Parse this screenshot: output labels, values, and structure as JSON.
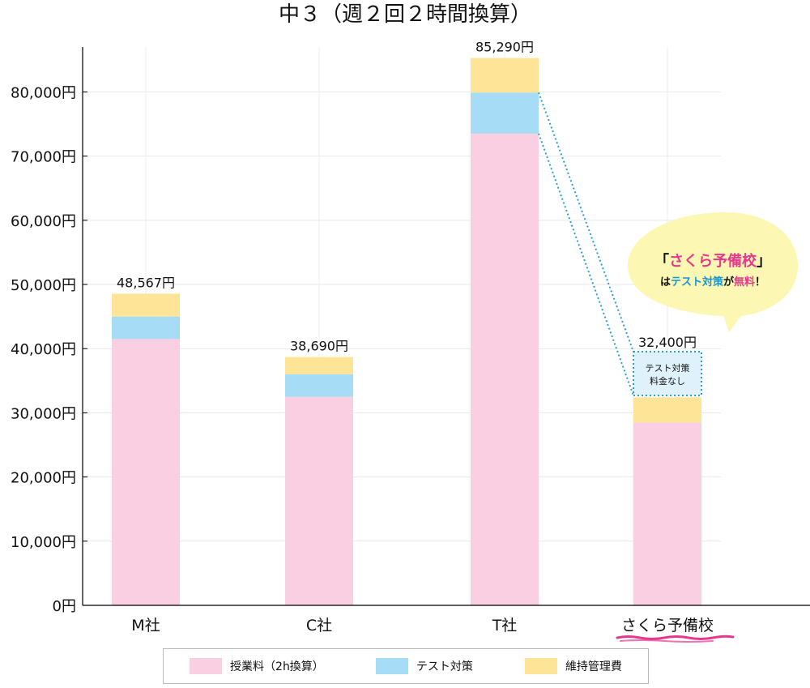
{
  "chart_data": {
    "type": "bar",
    "stacked": true,
    "title": "中３（週２回２時間換算）",
    "categories": [
      "M社",
      "C社",
      "T社",
      "さくら予備校"
    ],
    "series": [
      {
        "name": "授業料（2h換算）",
        "color": "#f9cfe1",
        "values": [
          41500,
          32500,
          73500,
          28500
        ]
      },
      {
        "name": "テスト対策",
        "color": "#a6dcf5",
        "values": [
          3500,
          3500,
          6400,
          0
        ]
      },
      {
        "name": "維持管理費",
        "color": "#fde497",
        "values": [
          3567,
          2690,
          5390,
          3900
        ]
      }
    ],
    "totals": [
      "48,567円",
      "38,690円",
      "85,290円",
      "32,400円"
    ],
    "ylim": [
      0,
      87000
    ],
    "yticks": [
      0,
      10000,
      20000,
      30000,
      40000,
      50000,
      60000,
      70000,
      80000
    ],
    "ytick_labels": [
      "0円",
      "10,000円",
      "20,000円",
      "30,000円",
      "40,000円",
      "50,000円",
      "60,000円",
      "70,000円",
      "80,000円"
    ],
    "grid": true,
    "legend_position": "bottom",
    "annotations": {
      "no_test_box": {
        "line1": "テスト対策",
        "line2": "料金なし"
      },
      "bubble": {
        "bracket_open": "「",
        "school": "さくら予備校",
        "bracket_close": "」",
        "ha": "は",
        "test": "テスト対策",
        "ga": "が",
        "free": "無料",
        "excl": "！"
      }
    },
    "accent_colors": {
      "pink": "#e8388e",
      "blue": "#1596d6",
      "underline": "#e8388e",
      "bubble": "#fdf7b4",
      "dotted": "#2aa0cc"
    }
  }
}
